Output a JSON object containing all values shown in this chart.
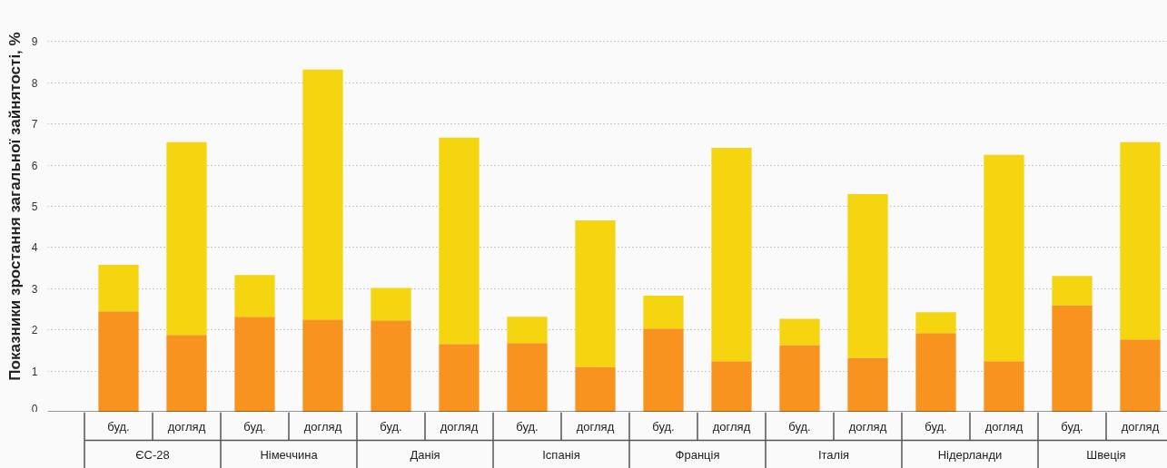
{
  "chart_data": {
    "type": "bar",
    "stacked": true,
    "ylabel": "Показники зростання загальної зайнятості, %",
    "categories": [
      "буд.",
      "догляд",
      "буд.",
      "догляд",
      "буд.",
      "догляд",
      "буд.",
      "догляд",
      "буд.",
      "догляд",
      "буд.",
      "догляд",
      "буд.",
      "догляд",
      "буд.",
      "догляд"
    ],
    "annotations": [
      "ЄС-28",
      "Німеччина",
      "Данія",
      "Іспанія",
      "Франція",
      "Італія",
      "Нідерланди",
      "Швеція"
    ],
    "series": [
      {
        "color": "#f7931e",
        "values": [
          2.45,
          1.88,
          2.32,
          2.25,
          2.23,
          1.66,
          1.68,
          1.1,
          2.03,
          1.24,
          1.63,
          1.32,
          1.92,
          1.24,
          2.6,
          1.77
        ]
      },
      {
        "color": "#f5d410",
        "values": [
          1.13,
          4.68,
          1.01,
          6.07,
          0.79,
          5.01,
          0.64,
          3.56,
          0.8,
          5.18,
          0.64,
          3.98,
          0.51,
          5.01,
          0.71,
          4.79
        ]
      }
    ],
    "ylim": [
      0,
      10
    ],
    "yticks": [
      0,
      1,
      2,
      3,
      4,
      5,
      6,
      7,
      8,
      9
    ],
    "grid": "y"
  }
}
